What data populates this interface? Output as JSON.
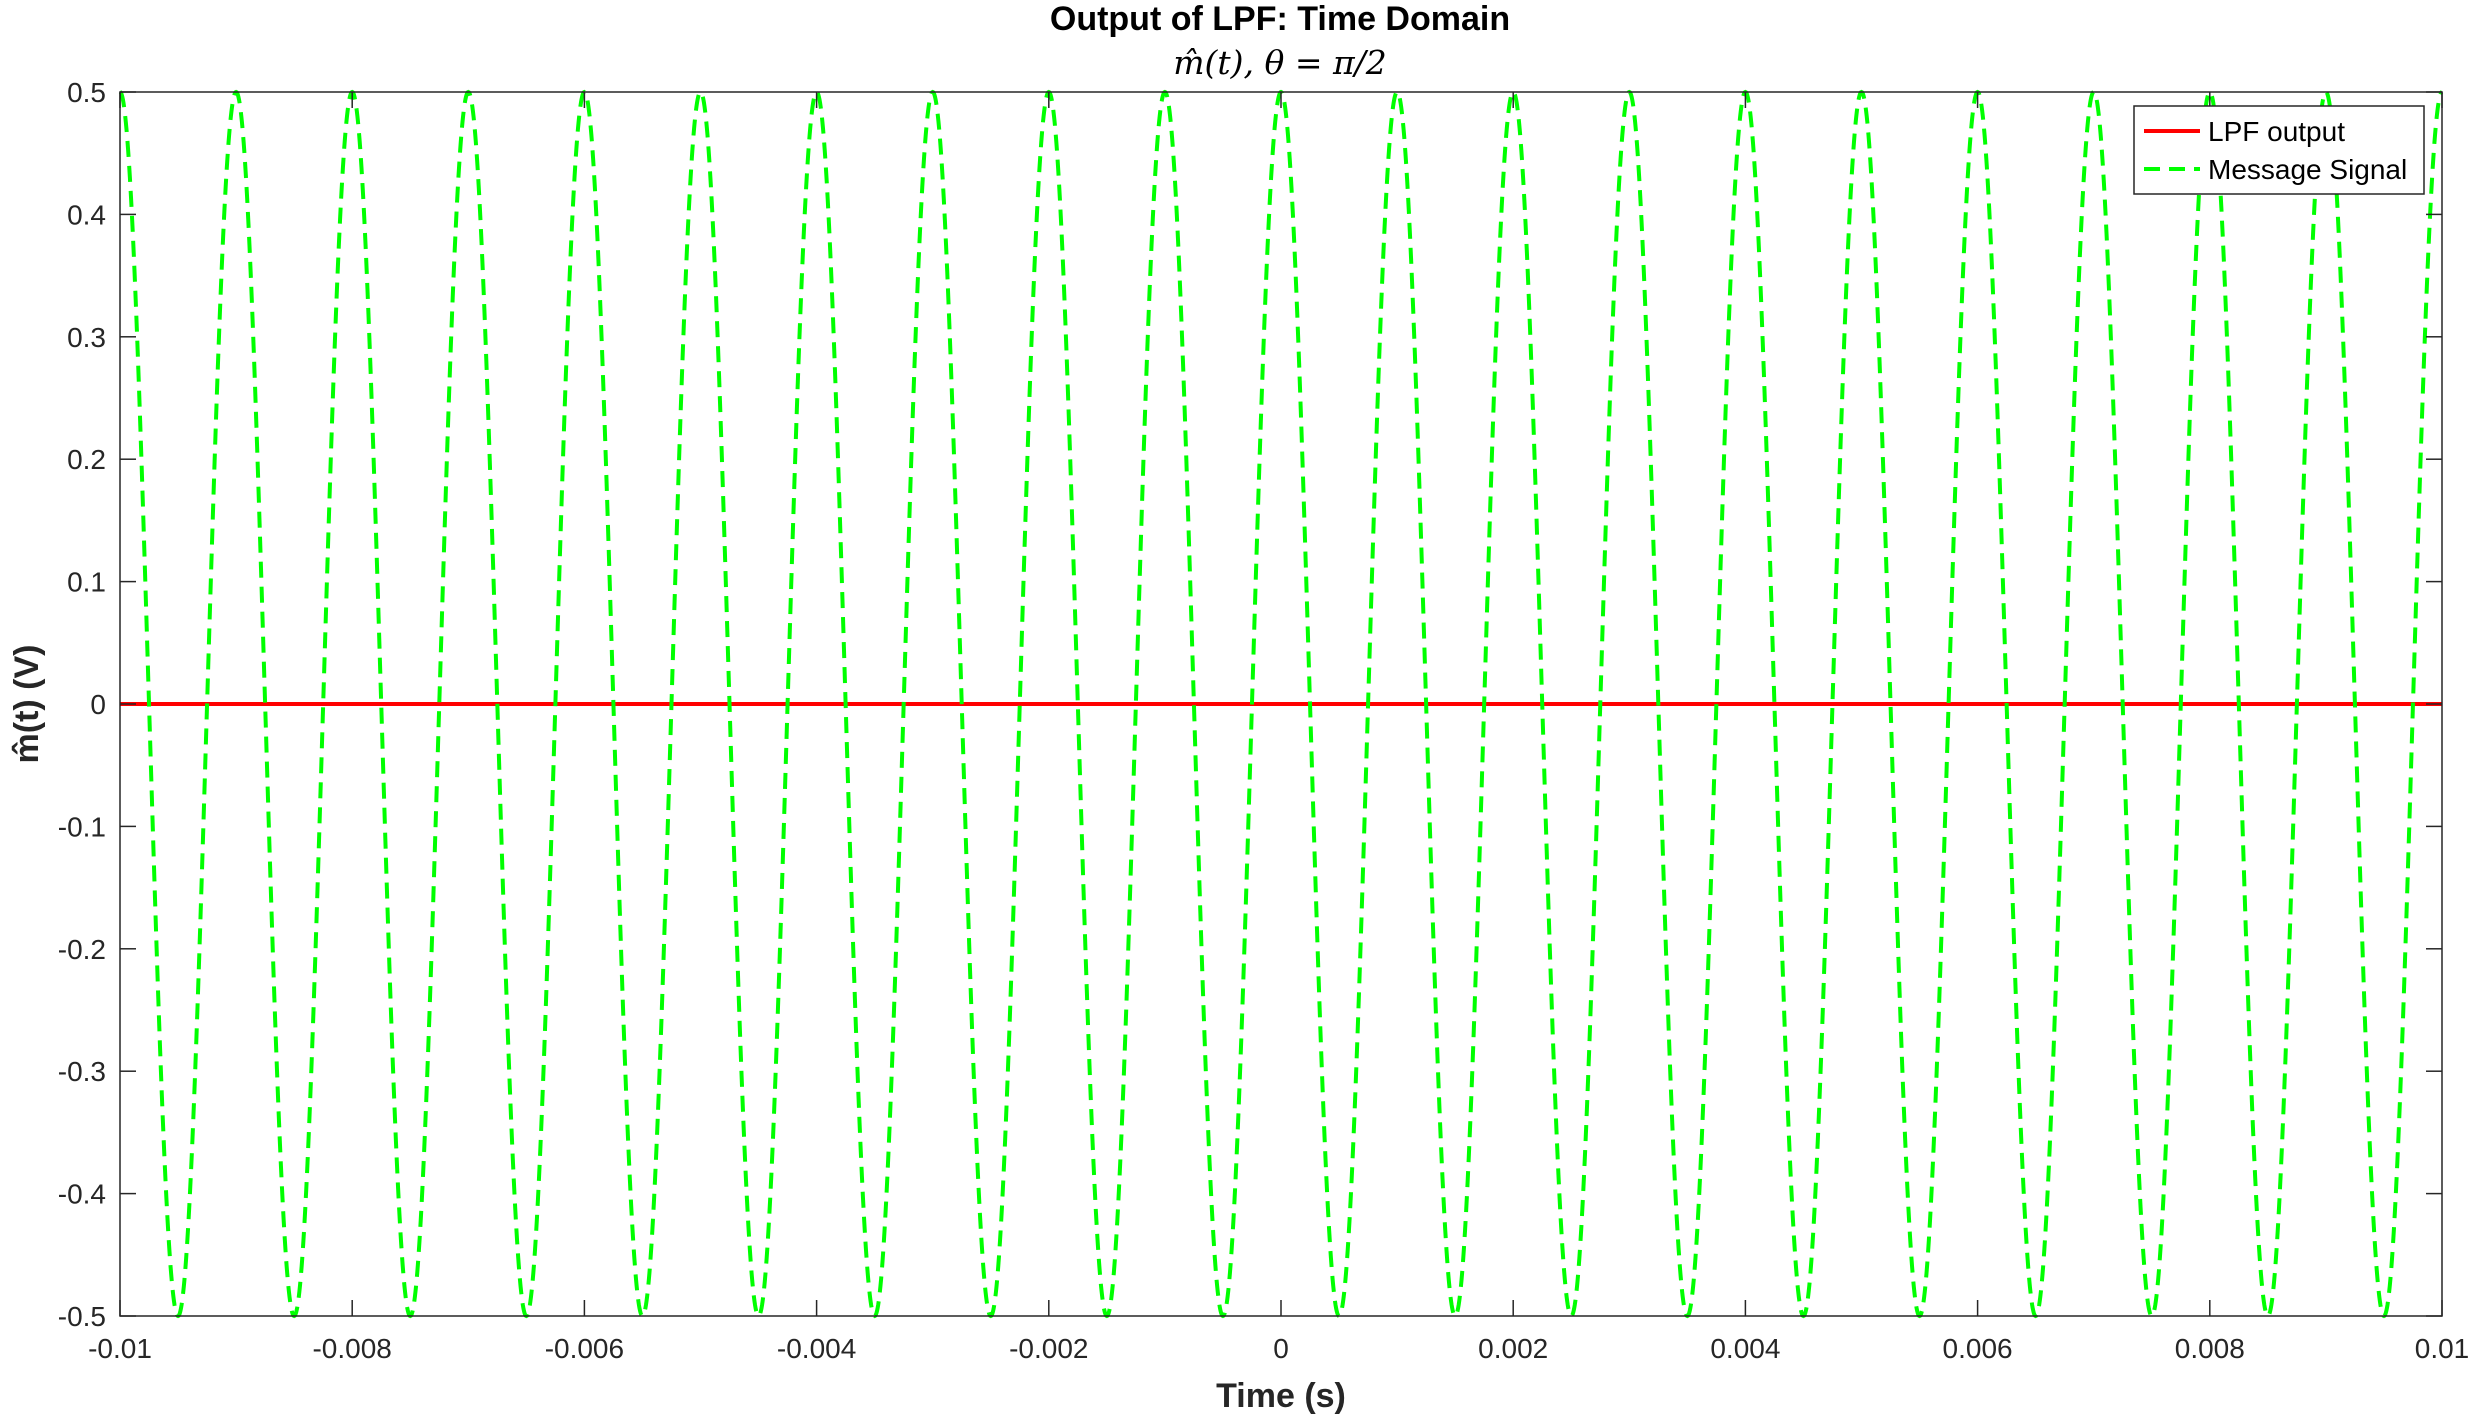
{
  "chart_data": {
    "type": "line",
    "title": "Output of LPF: Time Domain",
    "subtitle": "m̂(t), θ = π/2",
    "xlabel": "Time (s)",
    "ylabel": "m̂(t)  (V)",
    "xlim": [
      -0.01,
      0.01
    ],
    "ylim": [
      -0.5,
      0.5
    ],
    "x_ticks": [
      "-0.01",
      "-0.008",
      "-0.006",
      "-0.004",
      "-0.002",
      "0",
      "0.002",
      "0.004",
      "0.006",
      "0.008",
      "0.01"
    ],
    "y_ticks": [
      "0.5",
      "0.4",
      "0.3",
      "0.2",
      "0.1",
      "0",
      "-0.1",
      "-0.2",
      "-0.3",
      "-0.4",
      "-0.5"
    ],
    "grid": false,
    "legend_position": "top-right",
    "series": [
      {
        "name": "LPF output",
        "style": "solid",
        "color": "#ff0000",
        "function": "constant",
        "value": 0
      },
      {
        "name": "Message Signal",
        "style": "dashed",
        "color": "#00ff00",
        "function": "cosine",
        "amplitude": 0.5,
        "frequency_hz": 1000,
        "phase": 0
      }
    ]
  }
}
